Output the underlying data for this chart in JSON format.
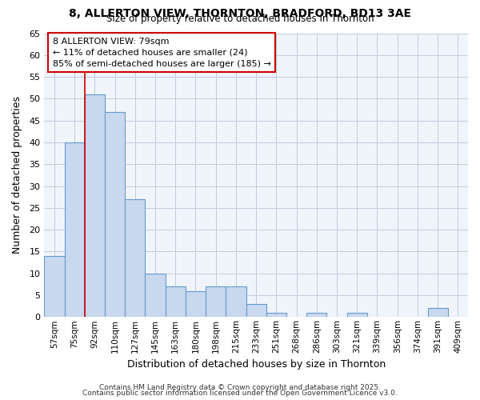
{
  "title1": "8, ALLERTON VIEW, THORNTON, BRADFORD, BD13 3AE",
  "title2": "Size of property relative to detached houses in Thornton",
  "xlabel": "Distribution of detached houses by size in Thornton",
  "ylabel": "Number of detached properties",
  "categories": [
    "57sqm",
    "75sqm",
    "92sqm",
    "110sqm",
    "127sqm",
    "145sqm",
    "163sqm",
    "180sqm",
    "198sqm",
    "215sqm",
    "233sqm",
    "251sqm",
    "268sqm",
    "286sqm",
    "303sqm",
    "321sqm",
    "339sqm",
    "356sqm",
    "374sqm",
    "391sqm",
    "409sqm"
  ],
  "values": [
    14,
    40,
    51,
    47,
    27,
    10,
    7,
    6,
    7,
    7,
    3,
    1,
    0,
    1,
    0,
    1,
    0,
    0,
    0,
    2,
    0
  ],
  "bar_color": "#c8d8ee",
  "bar_edge_color": "#6699cc",
  "grid_color": "#c0cce0",
  "background_color": "#ffffff",
  "plot_bg_color": "#f0f4fb",
  "red_line_x": 1.5,
  "annotation_line1": "8 ALLERTON VIEW: 79sqm",
  "annotation_line2": "← 11% of detached houses are smaller (24)",
  "annotation_line3": "85% of semi-detached houses are larger (185) →",
  "annotation_box_color": "#ffffff",
  "annotation_box_edge": "#cc0000",
  "footer1": "Contains HM Land Registry data © Crown copyright and database right 2025.",
  "footer2": "Contains public sector information licensed under the Open Government Licence v3.0.",
  "ylim": [
    0,
    65
  ],
  "yticks": [
    0,
    5,
    10,
    15,
    20,
    25,
    30,
    35,
    40,
    45,
    50,
    55,
    60,
    65
  ]
}
